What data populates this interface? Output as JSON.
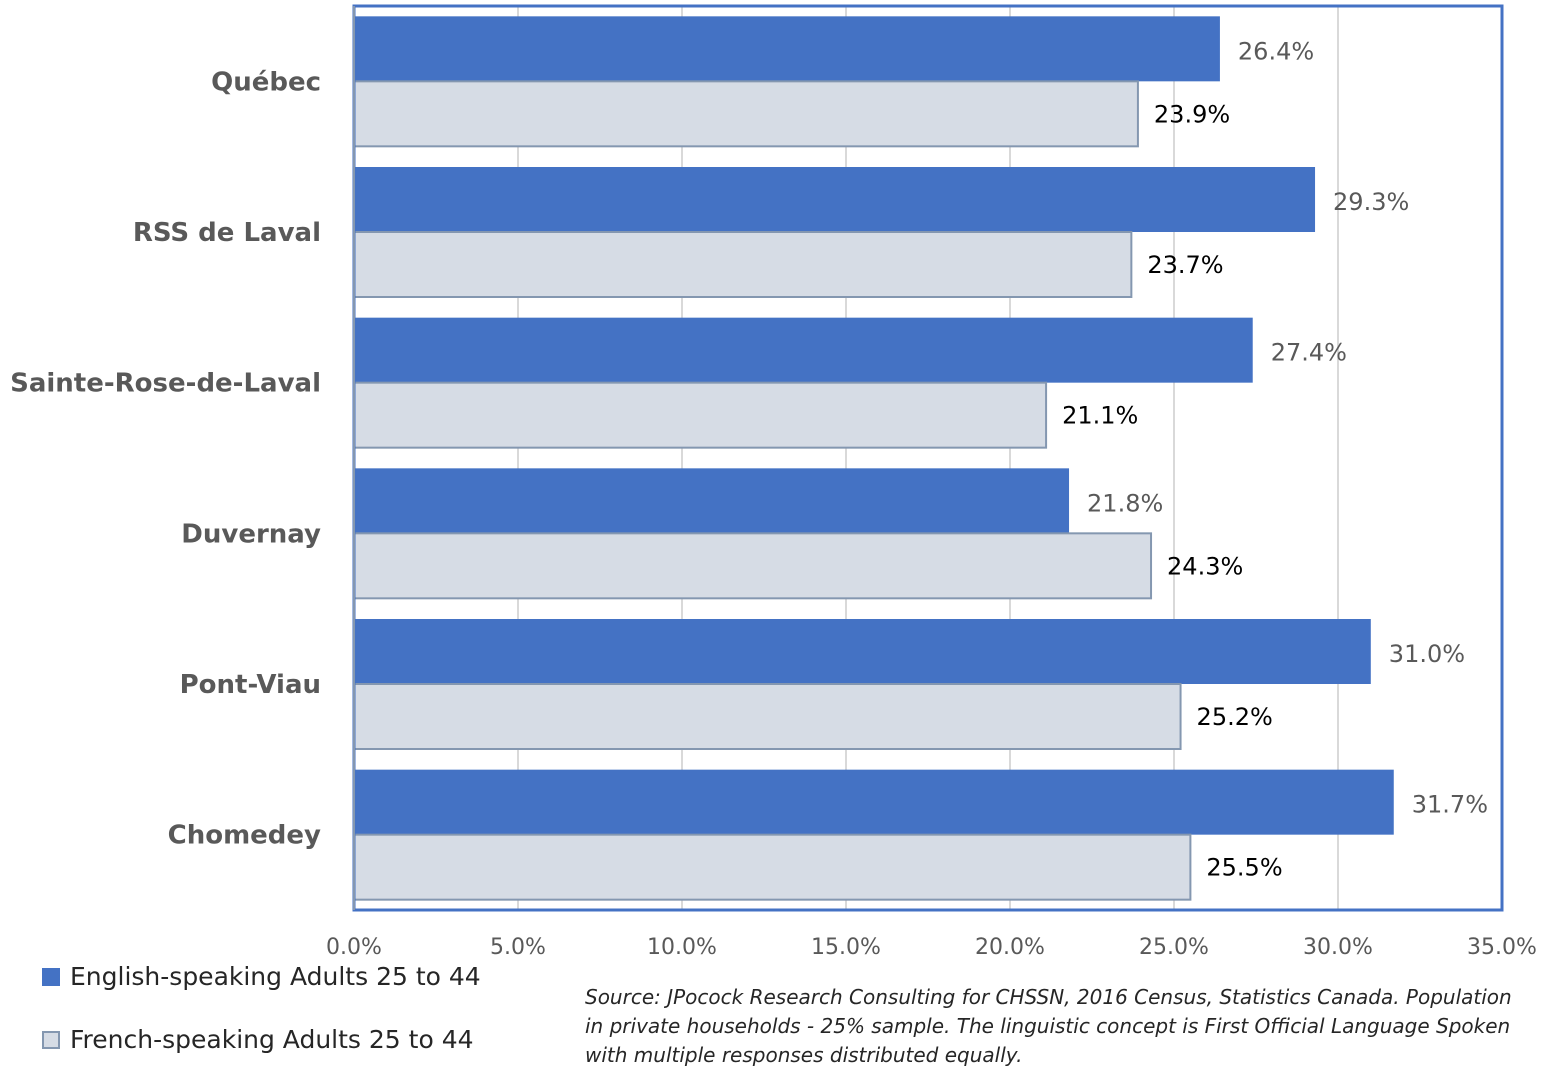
{
  "chart_data": {
    "type": "bar",
    "orientation": "horizontal",
    "categories": [
      "Québec",
      "RSS de Laval",
      "Sainte-Rose-de-Laval",
      "Duvernay",
      "Pont-Viau",
      "Chomedey"
    ],
    "series": [
      {
        "name": "English-speaking Adults 25 to 44",
        "values": [
          26.4,
          29.3,
          27.4,
          21.8,
          31.0,
          31.7
        ],
        "labels": [
          "26.4%",
          "29.3%",
          "27.4%",
          "21.8%",
          "31.0%",
          "31.7%"
        ],
        "color": "#4472C4",
        "label_color": "#595959"
      },
      {
        "name": "French-speaking Adults 25 to 44",
        "values": [
          23.9,
          23.7,
          21.1,
          24.3,
          25.2,
          25.5
        ],
        "labels": [
          "23.9%",
          "23.7%",
          "21.1%",
          "24.3%",
          "25.2%",
          "25.5%"
        ],
        "color": "#D6DCE5",
        "border_color": "#8497B0",
        "label_color": "#000000"
      }
    ],
    "xlim": [
      0,
      35
    ],
    "xticks": [
      0,
      5,
      10,
      15,
      20,
      25,
      30,
      35
    ],
    "xtick_labels": [
      "0.0%",
      "5.0%",
      "10.0%",
      "15.0%",
      "20.0%",
      "25.0%",
      "30.0%",
      "35.0%"
    ],
    "grid": true,
    "legend_position": "bottom-left",
    "border_color": "#4472C4",
    "source": "Source: JPocock Research Consulting for CHSSN, 2016 Census, Statistics Canada. Population in private households - 25% sample. The linguistic concept is First Official Language Spoken with multiple responses distributed equally."
  }
}
